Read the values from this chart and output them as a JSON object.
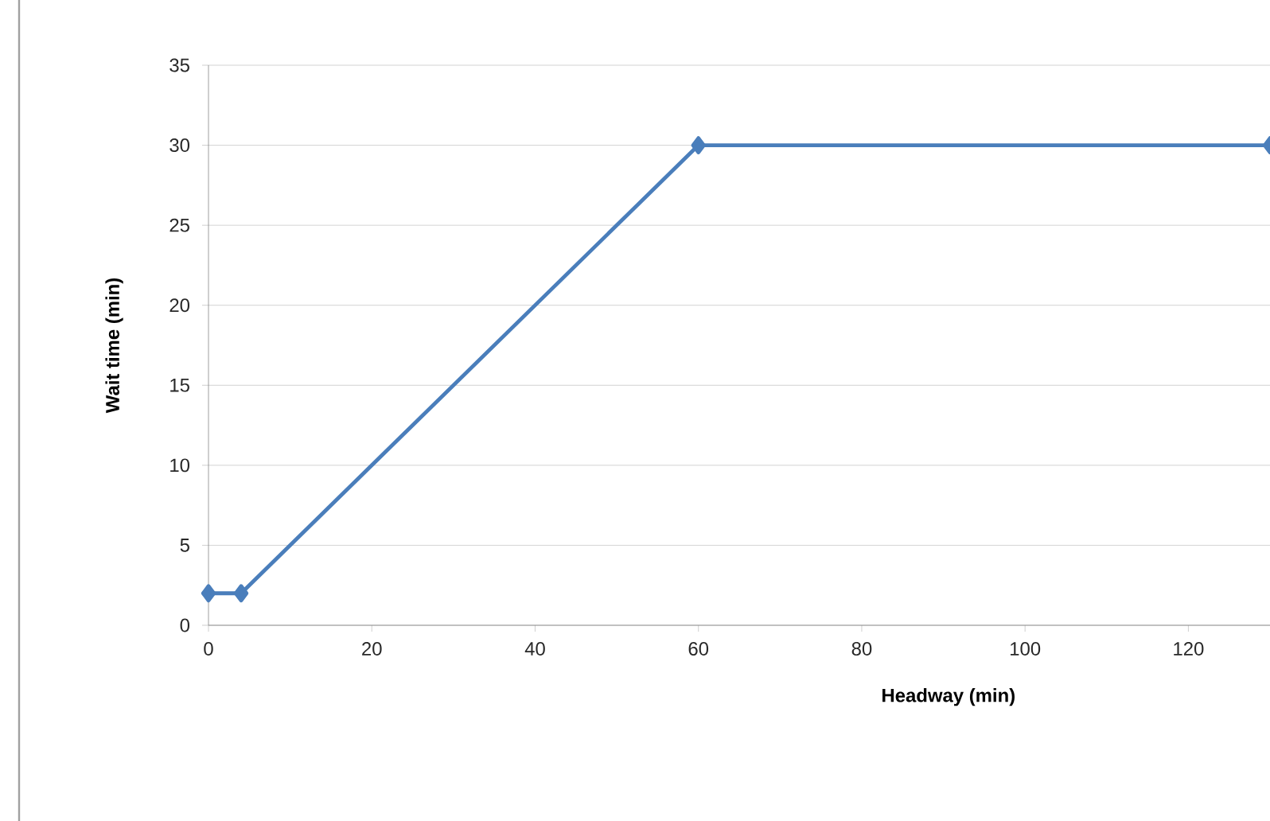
{
  "chart_data": {
    "type": "line",
    "xlabel": "Headway (min)",
    "ylabel": "Wait time (min)",
    "x": [
      0,
      4,
      60,
      130
    ],
    "series": [
      {
        "color": "#4a7ebb",
        "values": [
          2,
          2,
          30,
          30
        ]
      }
    ],
    "xlim": [
      0,
      130
    ],
    "ylim": [
      0,
      35
    ],
    "xticks": [
      0,
      20,
      40,
      60,
      80,
      100,
      120
    ],
    "yticks": [
      0,
      5,
      10,
      15,
      20,
      25,
      30,
      35
    ],
    "grid": "y",
    "marker": "diamond",
    "line_style": "solid"
  }
}
